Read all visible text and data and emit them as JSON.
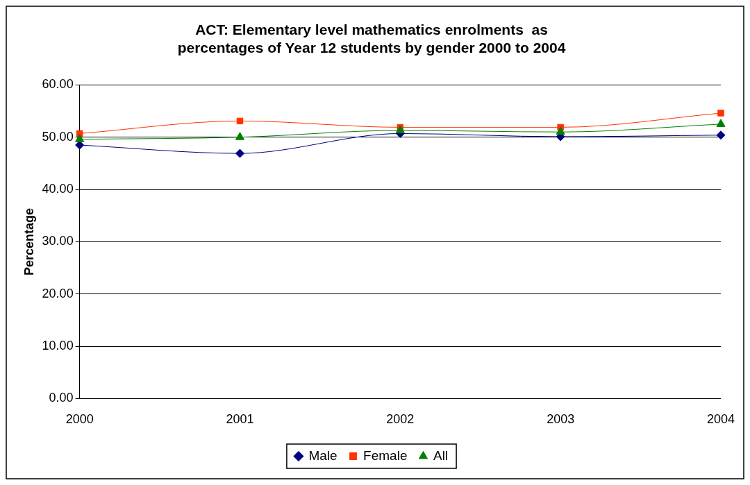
{
  "chart_data": {
    "type": "line",
    "title": "ACT: Elementary level mathematics enrolments  as percentages of Year 12 students by gender 2000 to 2004",
    "ylabel": "Percentage",
    "categories": [
      "2000",
      "2001",
      "2002",
      "2003",
      "2004"
    ],
    "series": [
      {
        "name": "Male",
        "color": "#000080",
        "marker": "diamond",
        "values": [
          48.5,
          46.9,
          50.7,
          50.1,
          50.4
        ]
      },
      {
        "name": "Female",
        "color": "#ff3300",
        "marker": "square",
        "values": [
          50.7,
          53.1,
          51.9,
          51.9,
          54.6
        ]
      },
      {
        "name": "All",
        "color": "#008000",
        "marker": "triangle",
        "values": [
          49.6,
          50.0,
          51.3,
          51.0,
          52.5
        ]
      }
    ],
    "ylim": [
      0,
      60
    ],
    "yticks": [
      {
        "value": 0,
        "label": "0.00"
      },
      {
        "value": 10,
        "label": "10.00"
      },
      {
        "value": 20,
        "label": "20.00"
      },
      {
        "value": 30,
        "label": "30.00"
      },
      {
        "value": 40,
        "label": "40.00"
      },
      {
        "value": 50,
        "label": "50.00"
      },
      {
        "value": 60,
        "label": "60.00"
      }
    ],
    "grid": "y",
    "legend": "bottom"
  }
}
